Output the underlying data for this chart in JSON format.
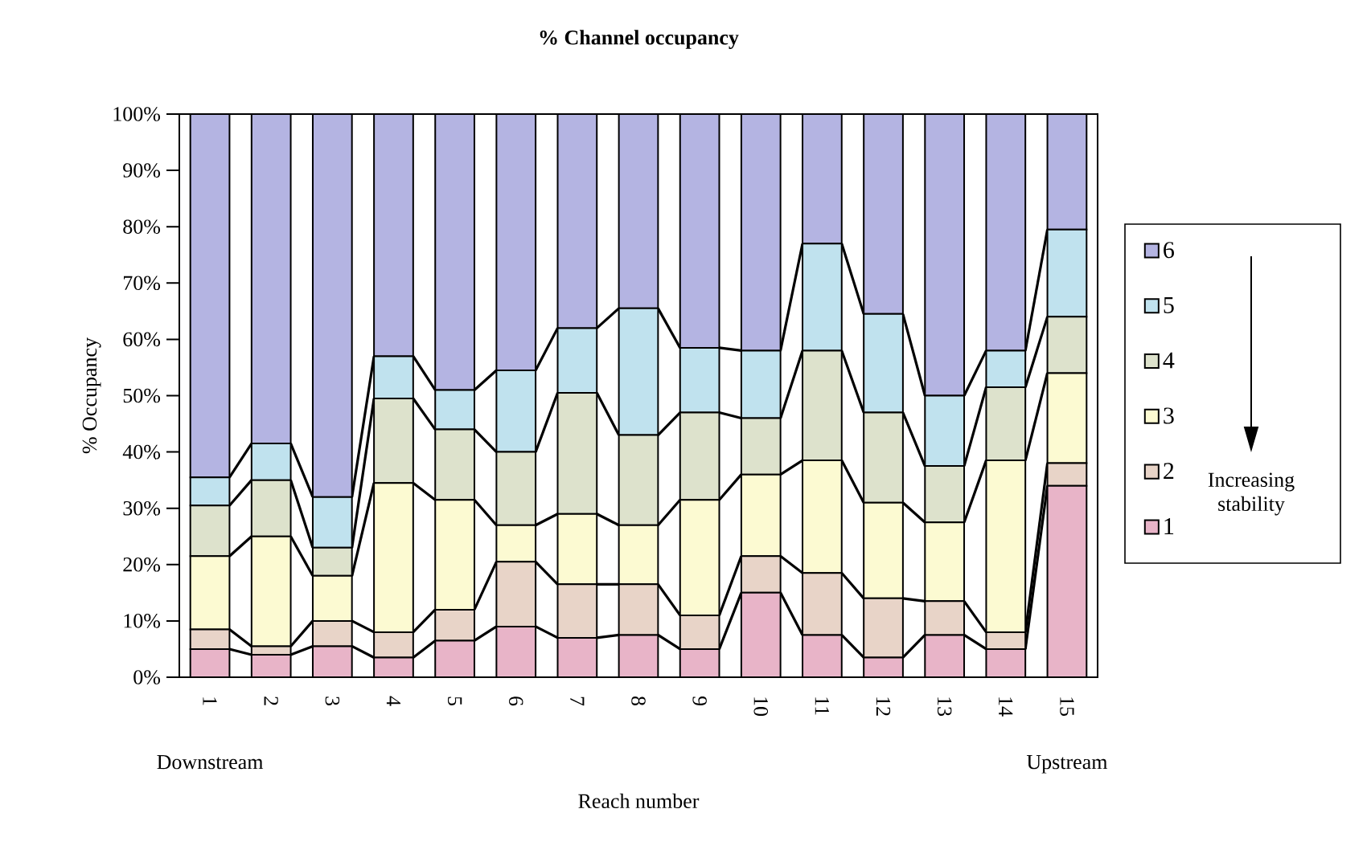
{
  "chart_data": {
    "type": "bar",
    "stacked": true,
    "title": "% Channel occupancy",
    "xlabel": "Reach number",
    "ylabel": "% Occupancy",
    "categories": [
      "1",
      "2",
      "3",
      "4",
      "5",
      "6",
      "7",
      "8",
      "9",
      "10",
      "11",
      "12",
      "13",
      "14",
      "15"
    ],
    "series": [
      {
        "name": "1",
        "color": "#e8b4c8",
        "values": [
          5,
          4,
          5.5,
          3.5,
          6.5,
          9,
          7,
          7.5,
          5,
          15,
          7.5,
          3.5,
          7.5,
          5,
          34
        ]
      },
      {
        "name": "2",
        "color": "#e8d4c8",
        "values": [
          3.5,
          1.5,
          4.5,
          4.5,
          5.5,
          11.5,
          9.5,
          9,
          6,
          6.5,
          11,
          10.5,
          6,
          3,
          4
        ]
      },
      {
        "name": "3",
        "color": "#fcfad2",
        "values": [
          13,
          19.5,
          8,
          26.5,
          19.5,
          6.5,
          12.5,
          10.5,
          20.5,
          14.5,
          20,
          17,
          14,
          30.5,
          16
        ]
      },
      {
        "name": "4",
        "color": "#dde2cc",
        "values": [
          9,
          10,
          5,
          15,
          12.5,
          13,
          21.5,
          16,
          15.5,
          10,
          19.5,
          16,
          10,
          13,
          10
        ]
      },
      {
        "name": "5",
        "color": "#c0e2ee",
        "values": [
          5,
          6.5,
          9,
          7.5,
          7,
          14.5,
          11.5,
          22.5,
          11.5,
          12,
          19,
          17.5,
          12.5,
          6.5,
          15.5
        ]
      },
      {
        "name": "6",
        "color": "#b4b4e2",
        "values": [
          64.5,
          58.5,
          68,
          43,
          49,
          45.5,
          38,
          34.5,
          41.5,
          42,
          23,
          35.5,
          50,
          42,
          20.5
        ]
      }
    ],
    "ylim": [
      0,
      100
    ],
    "yticks": [
      {
        "value": 0,
        "label": "0%"
      },
      {
        "value": 10,
        "label": "10%"
      },
      {
        "value": 20,
        "label": "20%"
      },
      {
        "value": 30,
        "label": "30%"
      },
      {
        "value": 40,
        "label": "40%"
      },
      {
        "value": 50,
        "label": "50%"
      },
      {
        "value": 60,
        "label": "60%"
      },
      {
        "value": 70,
        "label": "70%"
      },
      {
        "value": 80,
        "label": "80%"
      },
      {
        "value": 90,
        "label": "90%"
      },
      {
        "value": 100,
        "label": "100%"
      }
    ],
    "legend": "right",
    "annotations": [
      "Downstream",
      "Upstream",
      "Increasing stability"
    ]
  }
}
